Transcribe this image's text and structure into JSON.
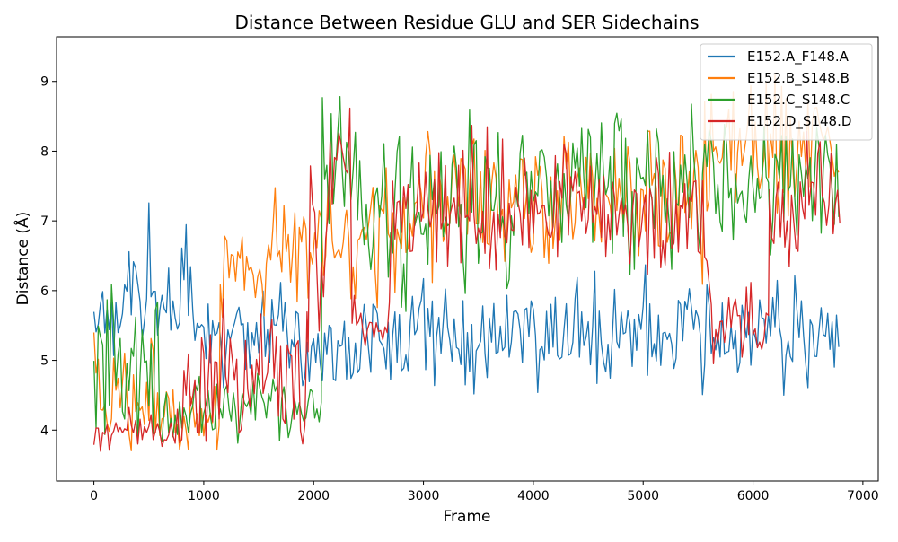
{
  "chart_data": {
    "type": "line",
    "title": "Distance Between Residue GLU and SER Sidechains",
    "xlabel": "Frame",
    "ylabel": "Distance (Å)",
    "xlim": [
      -340,
      7140
    ],
    "ylim": [
      3.27,
      9.64
    ],
    "xticks": [
      0,
      1000,
      2000,
      3000,
      4000,
      5000,
      6000,
      7000
    ],
    "xtick_labels": [
      "0",
      "1000",
      "2000",
      "3000",
      "4000",
      "5000",
      "6000",
      "7000"
    ],
    "yticks": [
      4,
      5,
      6,
      7,
      8,
      9
    ],
    "ytick_labels": [
      "4",
      "5",
      "6",
      "7",
      "8",
      "9"
    ],
    "grid": false,
    "legend_position": "top-right",
    "x_range": [
      0,
      6800
    ],
    "sample_every_frames": 20,
    "series": [
      {
        "name": "E152.A_F148.A",
        "color": "#1f77b4",
        "segments": [
          {
            "from": 0,
            "to": 300,
            "mean": 5.6,
            "noise": 0.35,
            "min": 4.8,
            "max": 6.1
          },
          {
            "from": 300,
            "to": 900,
            "mean": 6.0,
            "noise": 0.5,
            "min": 4.9,
            "max": 7.3
          },
          {
            "from": 900,
            "to": 1300,
            "mean": 5.3,
            "noise": 0.35,
            "min": 4.6,
            "max": 6.1
          },
          {
            "from": 1300,
            "to": 2000,
            "mean": 5.3,
            "noise": 0.45,
            "min": 4.5,
            "max": 6.3
          },
          {
            "from": 2000,
            "to": 2900,
            "mean": 5.3,
            "noise": 0.35,
            "min": 4.7,
            "max": 6.2
          },
          {
            "from": 2900,
            "to": 6800,
            "mean": 5.4,
            "noise": 0.38,
            "min": 4.5,
            "max": 6.5
          }
        ]
      },
      {
        "name": "E152.B_S148.B",
        "color": "#ff7f0e",
        "segments": [
          {
            "from": 0,
            "to": 600,
            "mean": 4.3,
            "noise": 0.55,
            "min": 3.7,
            "max": 6.1
          },
          {
            "from": 600,
            "to": 1150,
            "mean": 4.1,
            "noise": 0.25,
            "min": 3.7,
            "max": 4.8
          },
          {
            "from": 1150,
            "to": 2300,
            "mean": 6.6,
            "noise": 0.45,
            "min": 5.6,
            "max": 8.1
          },
          {
            "from": 2300,
            "to": 2900,
            "mean": 6.8,
            "noise": 0.55,
            "min": 5.7,
            "max": 8.4
          },
          {
            "from": 2900,
            "to": 4900,
            "mean": 7.3,
            "noise": 0.5,
            "min": 6.0,
            "max": 8.8
          },
          {
            "from": 4900,
            "to": 5600,
            "mean": 7.4,
            "noise": 0.55,
            "min": 6.0,
            "max": 8.9
          },
          {
            "from": 5600,
            "to": 6800,
            "mean": 8.0,
            "noise": 0.55,
            "min": 6.4,
            "max": 9.3
          }
        ]
      },
      {
        "name": "E152.C_S148.C",
        "color": "#2ca02c",
        "segments": [
          {
            "from": 0,
            "to": 600,
            "mean": 4.9,
            "noise": 0.65,
            "min": 3.7,
            "max": 6.1
          },
          {
            "from": 600,
            "to": 1150,
            "mean": 4.2,
            "noise": 0.3,
            "min": 3.6,
            "max": 5.3
          },
          {
            "from": 1150,
            "to": 2080,
            "mean": 4.3,
            "noise": 0.3,
            "min": 3.8,
            "max": 5.2
          },
          {
            "from": 2080,
            "to": 2400,
            "mean": 7.9,
            "noise": 0.45,
            "min": 6.9,
            "max": 8.8
          },
          {
            "from": 2400,
            "to": 3800,
            "mean": 7.1,
            "noise": 0.6,
            "min": 5.3,
            "max": 9.0
          },
          {
            "from": 3800,
            "to": 5600,
            "mean": 7.4,
            "noise": 0.55,
            "min": 6.2,
            "max": 9.1
          },
          {
            "from": 5600,
            "to": 6800,
            "mean": 7.5,
            "noise": 0.45,
            "min": 6.5,
            "max": 8.7
          }
        ]
      },
      {
        "name": "E152.D_S148.D",
        "color": "#d62728",
        "segments": [
          {
            "from": 0,
            "to": 800,
            "mean": 4.0,
            "noise": 0.18,
            "min": 3.6,
            "max": 4.6
          },
          {
            "from": 800,
            "to": 1950,
            "mean": 4.7,
            "noise": 0.55,
            "min": 3.8,
            "max": 6.1
          },
          {
            "from": 1950,
            "to": 2150,
            "mean": 6.5,
            "noise": 0.7,
            "min": 5.0,
            "max": 8.2
          },
          {
            "from": 2150,
            "to": 2350,
            "mean": 8.0,
            "noise": 0.45,
            "min": 7.0,
            "max": 8.9
          },
          {
            "from": 2350,
            "to": 2700,
            "mean": 5.5,
            "noise": 0.3,
            "min": 4.9,
            "max": 6.2
          },
          {
            "from": 2700,
            "to": 5400,
            "mean": 7.1,
            "noise": 0.45,
            "min": 5.8,
            "max": 8.5
          },
          {
            "from": 5400,
            "to": 5600,
            "mean": 7.0,
            "noise": 0.5,
            "min": 5.8,
            "max": 8.0
          },
          {
            "from": 5600,
            "to": 6150,
            "mean": 5.5,
            "noise": 0.3,
            "min": 4.9,
            "max": 6.2
          },
          {
            "from": 6150,
            "to": 6800,
            "mean": 7.2,
            "noise": 0.45,
            "min": 4.6,
            "max": 8.4
          }
        ]
      }
    ]
  }
}
